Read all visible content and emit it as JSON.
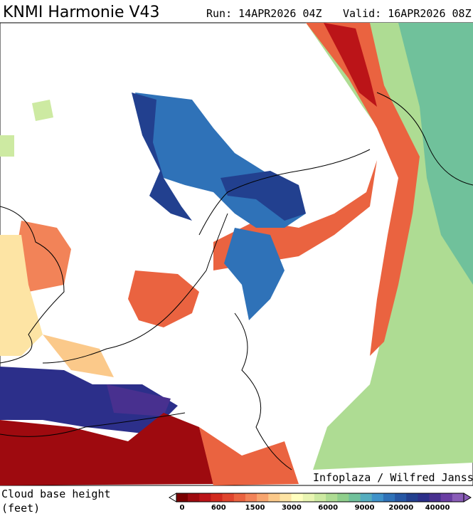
{
  "header": {
    "title": "KNMI Harmonie V43",
    "run": "Run: 14APR2026 04Z",
    "valid": "Valid: 16APR2026 08Z"
  },
  "credit": "Infoplaza / Wilfred Janssen",
  "legend": {
    "title_line1": "Cloud base height",
    "title_line2": "(feet)",
    "colors": [
      "#7a0000",
      "#9e0a0f",
      "#bb1418",
      "#d22a1e",
      "#e0452e",
      "#ea6340",
      "#f28358",
      "#f7a56e",
      "#fbc98a",
      "#fde4a4",
      "#ffffbf",
      "#e9f5b2",
      "#cdeaa2",
      "#aedc93",
      "#8fcf8c",
      "#70c19b",
      "#55adbf",
      "#3f92c9",
      "#2f72b8",
      "#2657a4",
      "#22408f",
      "#2c2f8a",
      "#48308f",
      "#6a3ea3",
      "#8a5db8"
    ],
    "ticks": [
      0,
      600,
      1500,
      3000,
      6000,
      9000,
      20000,
      40000
    ]
  }
}
